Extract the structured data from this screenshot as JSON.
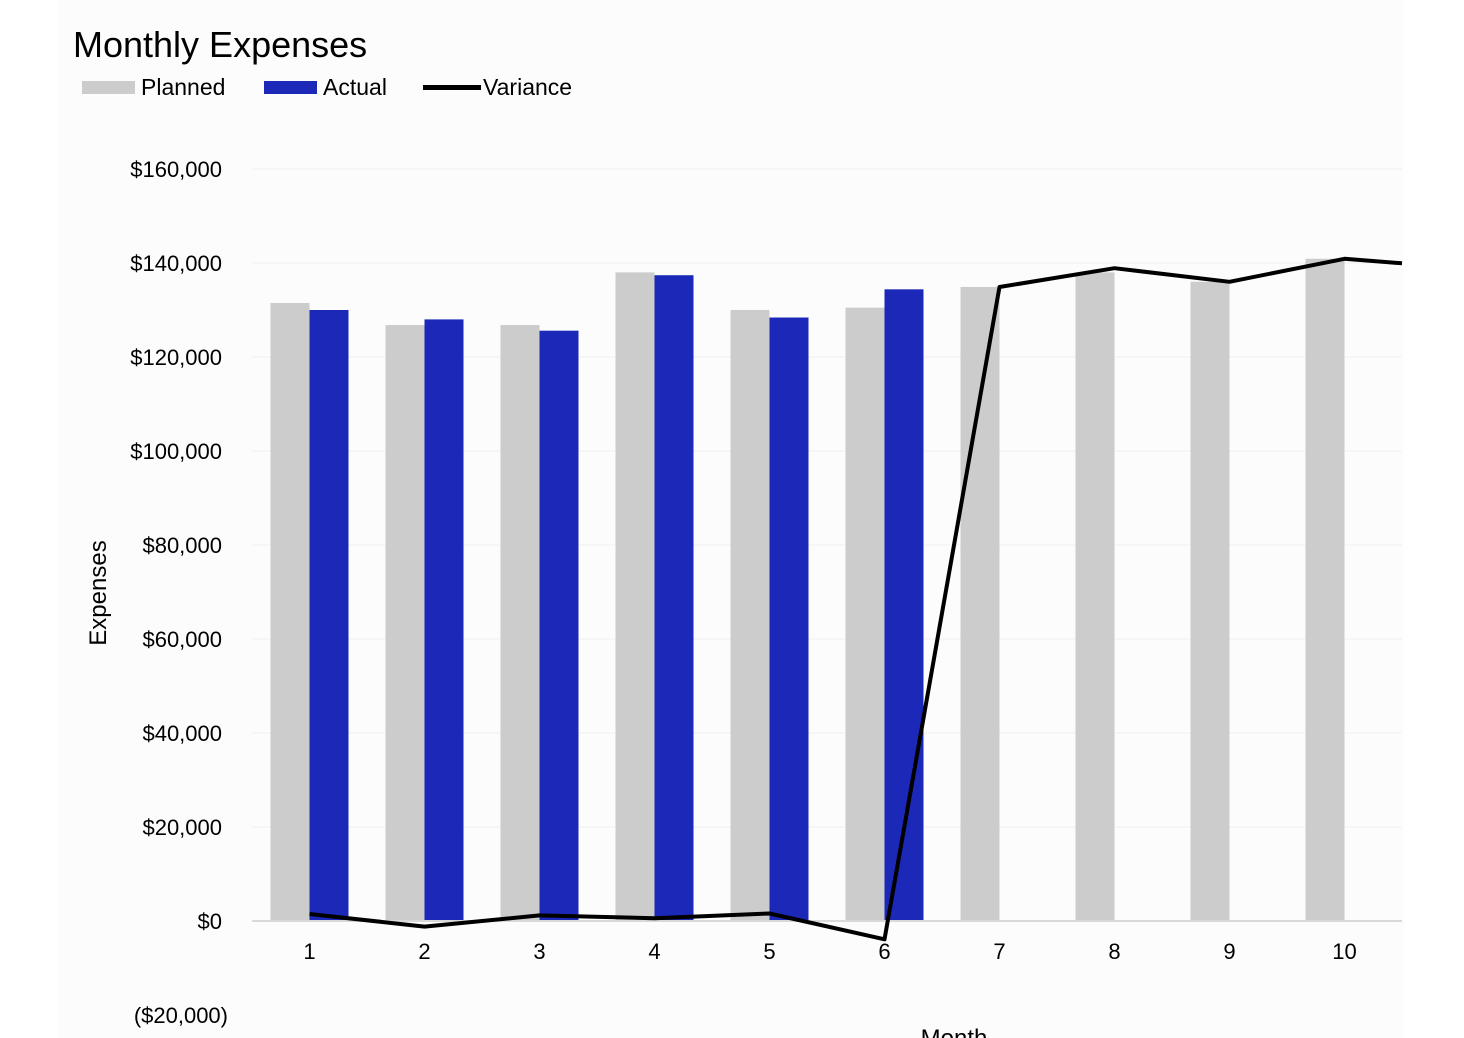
{
  "chart_data": {
    "type": "bar",
    "title": "Monthly Expenses",
    "xlabel": "Month",
    "ylabel": "Expenses",
    "categories": [
      "1",
      "2",
      "3",
      "4",
      "5",
      "6",
      "7",
      "8",
      "9",
      "10"
    ],
    "ylim": [
      -20000,
      160000
    ],
    "yticks": [
      0,
      20000,
      40000,
      60000,
      80000,
      100000,
      120000,
      140000,
      160000
    ],
    "ytick_labels": [
      "$0",
      "$20,000",
      "$40,000",
      "$60,000",
      "$80,000",
      "$100,000",
      "$120,000",
      "$140,000",
      "$160,000"
    ],
    "negative_tick_label": "($20,000)",
    "grid": true,
    "legend_position": "top-left",
    "series": [
      {
        "name": "Planned",
        "type": "bar",
        "color": "#cccccc",
        "values": [
          131500,
          126800,
          126800,
          138000,
          130000,
          130500,
          134900,
          138000,
          136000,
          140900
        ]
      },
      {
        "name": "Actual",
        "type": "bar",
        "color": "#1c28b7",
        "values": [
          130000,
          128000,
          125600,
          137400,
          128400,
          134400,
          null,
          null,
          null,
          null
        ]
      },
      {
        "name": "Variance",
        "type": "line",
        "color": "#000000",
        "values": [
          1500,
          -1200,
          1200,
          600,
          1600,
          -3900,
          134900,
          138900,
          136000,
          140900
        ]
      }
    ]
  },
  "colors": {
    "planned": "#cccccc",
    "actual": "#1c28b7",
    "variance": "#000000",
    "negative_tick": "#3ddcf2"
  }
}
